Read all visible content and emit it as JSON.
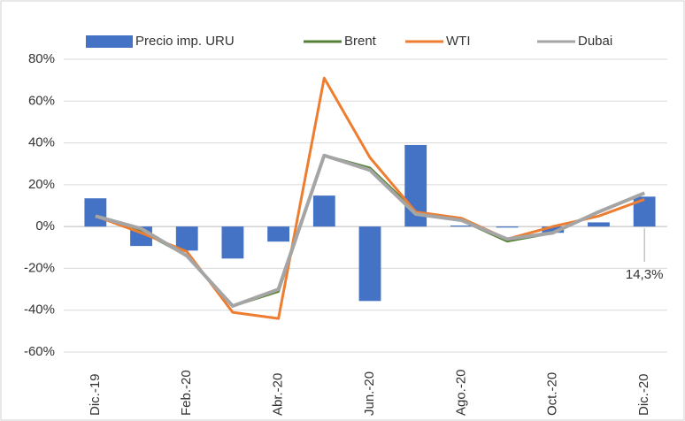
{
  "chart_data": {
    "type": "bar",
    "categories": [
      "Dic.-19",
      null,
      "Feb.-20",
      null,
      "Abr.-20",
      null,
      "Jun.-20",
      null,
      "Ago.-20",
      null,
      "Oct.-20",
      null,
      "Dic.-20"
    ],
    "series": [
      {
        "name": "Precio imp. URU",
        "type": "bar",
        "color": "#4472c4",
        "values": [
          13.5,
          -9.3,
          -11.5,
          -15.3,
          -7.2,
          14.8,
          -35.6,
          39,
          0.5,
          -0.5,
          -3,
          2,
          14.3
        ],
        "value_labels": [
          null,
          null,
          null,
          null,
          null,
          null,
          null,
          null,
          null,
          null,
          null,
          null,
          "14,3%"
        ]
      },
      {
        "name": "Brent",
        "type": "line",
        "color": "#548235",
        "values": [
          5,
          -2,
          -14,
          -38,
          -31,
          34,
          28,
          7,
          3,
          -7,
          -3,
          7,
          16
        ]
      },
      {
        "name": "WTI",
        "type": "line",
        "color": "#ed7d31",
        "values": [
          5,
          -3,
          -12,
          -41,
          -44,
          71,
          33,
          7,
          4,
          -6,
          0,
          5,
          13
        ]
      },
      {
        "name": "Dubai",
        "type": "line",
        "color": "#a5a5a5",
        "values": [
          5,
          -1,
          -14,
          -38,
          -30,
          34,
          27,
          6,
          3,
          -6,
          -3,
          7,
          16
        ]
      }
    ],
    "ylim": [
      -60,
      80
    ],
    "yticks": [
      {
        "value": -60,
        "label": "-60%"
      },
      {
        "value": -40,
        "label": "-40%"
      },
      {
        "value": -20,
        "label": "-20%"
      },
      {
        "value": 0,
        "label": "0%"
      },
      {
        "value": 20,
        "label": "20%"
      },
      {
        "value": 40,
        "label": "40%"
      },
      {
        "value": 60,
        "label": "60%"
      },
      {
        "value": 80,
        "label": "80%"
      }
    ],
    "grid": true,
    "legend": "top"
  }
}
